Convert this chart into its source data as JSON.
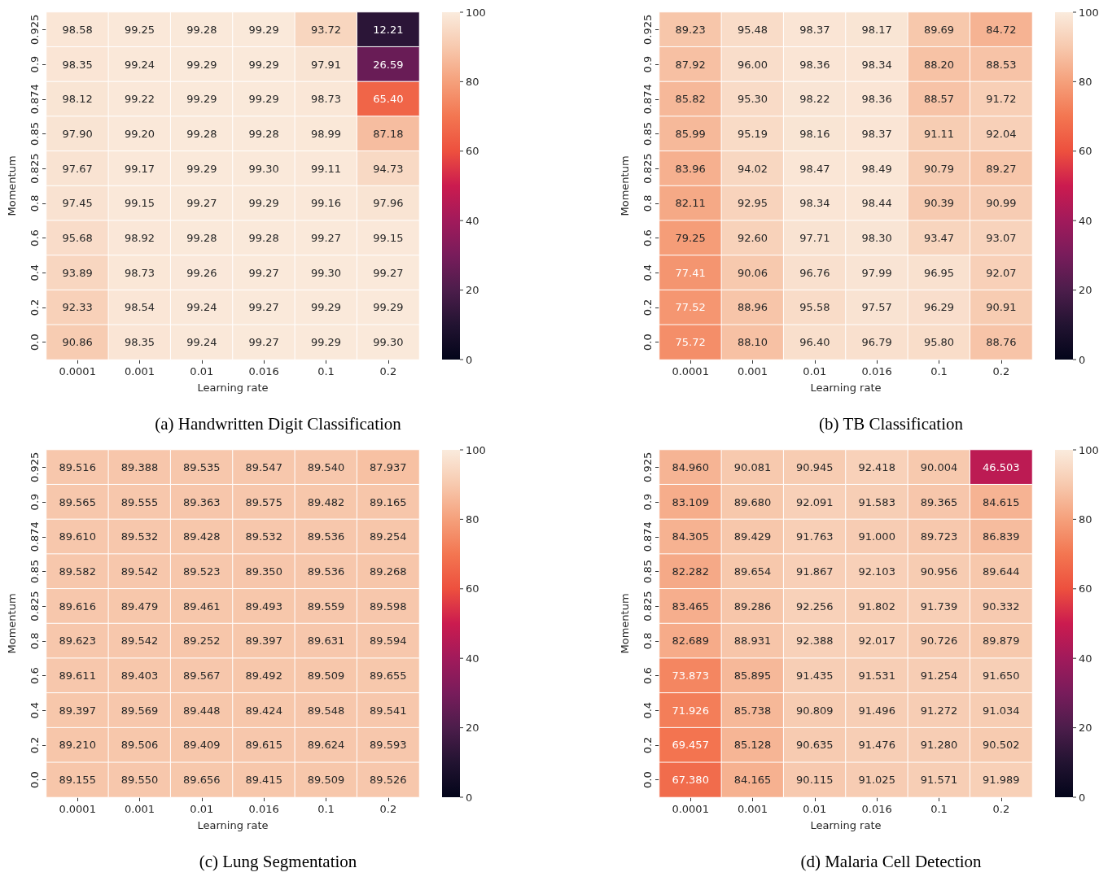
{
  "chart_data": [
    {
      "type": "heatmap",
      "title": "(a) Handwritten Digit Classification",
      "xlabel": "Learning rate",
      "ylabel": "Momentum",
      "categories": [
        "0.0001",
        "0.001",
        "0.01",
        "0.016",
        "0.1",
        "0.2"
      ],
      "y_categories": [
        "0.925",
        "0.9",
        "0.874",
        "0.85",
        "0.825",
        "0.8",
        "0.6",
        "0.4",
        "0.2",
        "0.0"
      ],
      "clim": [
        0,
        100
      ],
      "cticks": [
        0,
        20,
        40,
        60,
        80,
        100
      ],
      "cells": [
        [
          98.58,
          99.25,
          99.28,
          99.29,
          93.72,
          12.21
        ],
        [
          98.35,
          99.24,
          99.29,
          99.29,
          97.91,
          26.59
        ],
        [
          98.12,
          99.22,
          99.29,
          99.29,
          98.73,
          65.4
        ],
        [
          97.9,
          99.2,
          99.28,
          99.28,
          98.99,
          87.18
        ],
        [
          97.67,
          99.17,
          99.29,
          99.3,
          99.11,
          94.73
        ],
        [
          97.45,
          99.15,
          99.27,
          99.29,
          99.16,
          97.96
        ],
        [
          95.68,
          98.92,
          99.28,
          99.28,
          99.27,
          99.15
        ],
        [
          93.89,
          98.73,
          99.26,
          99.27,
          99.3,
          99.27
        ],
        [
          92.33,
          98.54,
          99.24,
          99.27,
          99.29,
          99.29
        ],
        [
          90.86,
          98.35,
          99.24,
          99.27,
          99.29,
          99.3
        ]
      ],
      "cell_labels": [
        [
          "98.58",
          "99.25",
          "99.28",
          "99.29",
          "93.72",
          "12.21"
        ],
        [
          "98.35",
          "99.24",
          "99.29",
          "99.29",
          "97.91",
          "26.59"
        ],
        [
          "98.12",
          "99.22",
          "99.29",
          "99.29",
          "98.73",
          "65.40"
        ],
        [
          "97.90",
          "99.20",
          "99.28",
          "99.28",
          "98.99",
          "87.18"
        ],
        [
          "97.67",
          "99.17",
          "99.29",
          "99.30",
          "99.11",
          "94.73"
        ],
        [
          "97.45",
          "99.15",
          "99.27",
          "99.29",
          "99.16",
          "97.96"
        ],
        [
          "95.68",
          "98.92",
          "99.28",
          "99.28",
          "99.27",
          "99.15"
        ],
        [
          "93.89",
          "98.73",
          "99.26",
          "99.27",
          "99.30",
          "99.27"
        ],
        [
          "92.33",
          "98.54",
          "99.24",
          "99.27",
          "99.29",
          "99.29"
        ],
        [
          "90.86",
          "98.35",
          "99.24",
          "99.27",
          "99.29",
          "99.30"
        ]
      ]
    },
    {
      "type": "heatmap",
      "title": "(b) TB Classification",
      "xlabel": "Learning rate",
      "ylabel": "Momentum",
      "categories": [
        "0.0001",
        "0.001",
        "0.01",
        "0.016",
        "0.1",
        "0.2"
      ],
      "y_categories": [
        "0.925",
        "0.9",
        "0.874",
        "0.85",
        "0.825",
        "0.8",
        "0.6",
        "0.4",
        "0.2",
        "0.0"
      ],
      "clim": [
        0,
        100
      ],
      "cticks": [
        0,
        20,
        40,
        60,
        80,
        100
      ],
      "cells": [
        [
          89.23,
          95.48,
          98.37,
          98.17,
          89.69,
          84.72
        ],
        [
          87.92,
          96.0,
          98.36,
          98.34,
          88.2,
          88.53
        ],
        [
          85.82,
          95.3,
          98.22,
          98.36,
          88.57,
          91.72
        ],
        [
          85.99,
          95.19,
          98.16,
          98.37,
          91.11,
          92.04
        ],
        [
          83.96,
          94.02,
          98.47,
          98.49,
          90.79,
          89.27
        ],
        [
          82.11,
          92.95,
          98.34,
          98.44,
          90.39,
          90.99
        ],
        [
          79.25,
          92.6,
          97.71,
          98.3,
          93.47,
          93.07
        ],
        [
          77.41,
          90.06,
          96.76,
          97.99,
          96.95,
          92.07
        ],
        [
          77.52,
          88.96,
          95.58,
          97.57,
          96.29,
          90.91
        ],
        [
          75.72,
          88.1,
          96.4,
          96.79,
          95.8,
          88.76
        ]
      ],
      "cell_labels": [
        [
          "89.23",
          "95.48",
          "98.37",
          "98.17",
          "89.69",
          "84.72"
        ],
        [
          "87.92",
          "96.00",
          "98.36",
          "98.34",
          "88.20",
          "88.53"
        ],
        [
          "85.82",
          "95.30",
          "98.22",
          "98.36",
          "88.57",
          "91.72"
        ],
        [
          "85.99",
          "95.19",
          "98.16",
          "98.37",
          "91.11",
          "92.04"
        ],
        [
          "83.96",
          "94.02",
          "98.47",
          "98.49",
          "90.79",
          "89.27"
        ],
        [
          "82.11",
          "92.95",
          "98.34",
          "98.44",
          "90.39",
          "90.99"
        ],
        [
          "79.25",
          "92.60",
          "97.71",
          "98.30",
          "93.47",
          "93.07"
        ],
        [
          "77.41",
          "90.06",
          "96.76",
          "97.99",
          "96.95",
          "92.07"
        ],
        [
          "77.52",
          "88.96",
          "95.58",
          "97.57",
          "96.29",
          "90.91"
        ],
        [
          "75.72",
          "88.10",
          "96.40",
          "96.79",
          "95.80",
          "88.76"
        ]
      ]
    },
    {
      "type": "heatmap",
      "title": "(c) Lung Segmentation",
      "xlabel": "Learning rate",
      "ylabel": "Momentum",
      "categories": [
        "0.0001",
        "0.001",
        "0.01",
        "0.016",
        "0.1",
        "0.2"
      ],
      "y_categories": [
        "0.925",
        "0.9",
        "0.874",
        "0.85",
        "0.825",
        "0.8",
        "0.6",
        "0.4",
        "0.2",
        "0.0"
      ],
      "clim": [
        0,
        100
      ],
      "cticks": [
        0,
        20,
        40,
        60,
        80,
        100
      ],
      "cells": [
        [
          89.516,
          89.388,
          89.535,
          89.547,
          89.54,
          87.937
        ],
        [
          89.565,
          89.555,
          89.363,
          89.575,
          89.482,
          89.165
        ],
        [
          89.61,
          89.532,
          89.428,
          89.532,
          89.536,
          89.254
        ],
        [
          89.582,
          89.542,
          89.523,
          89.35,
          89.536,
          89.268
        ],
        [
          89.616,
          89.479,
          89.461,
          89.493,
          89.559,
          89.598
        ],
        [
          89.623,
          89.542,
          89.252,
          89.397,
          89.631,
          89.594
        ],
        [
          89.611,
          89.403,
          89.567,
          89.492,
          89.509,
          89.655
        ],
        [
          89.397,
          89.569,
          89.448,
          89.424,
          89.548,
          89.541
        ],
        [
          89.21,
          89.506,
          89.409,
          89.615,
          89.624,
          89.593
        ],
        [
          89.155,
          89.55,
          89.656,
          89.415,
          89.509,
          89.526
        ]
      ],
      "cell_labels": [
        [
          "89.516",
          "89.388",
          "89.535",
          "89.547",
          "89.540",
          "87.937"
        ],
        [
          "89.565",
          "89.555",
          "89.363",
          "89.575",
          "89.482",
          "89.165"
        ],
        [
          "89.610",
          "89.532",
          "89.428",
          "89.532",
          "89.536",
          "89.254"
        ],
        [
          "89.582",
          "89.542",
          "89.523",
          "89.350",
          "89.536",
          "89.268"
        ],
        [
          "89.616",
          "89.479",
          "89.461",
          "89.493",
          "89.559",
          "89.598"
        ],
        [
          "89.623",
          "89.542",
          "89.252",
          "89.397",
          "89.631",
          "89.594"
        ],
        [
          "89.611",
          "89.403",
          "89.567",
          "89.492",
          "89.509",
          "89.655"
        ],
        [
          "89.397",
          "89.569",
          "89.448",
          "89.424",
          "89.548",
          "89.541"
        ],
        [
          "89.210",
          "89.506",
          "89.409",
          "89.615",
          "89.624",
          "89.593"
        ],
        [
          "89.155",
          "89.550",
          "89.656",
          "89.415",
          "89.509",
          "89.526"
        ]
      ]
    },
    {
      "type": "heatmap",
      "title": "(d) Malaria Cell Detection",
      "xlabel": "Learning rate",
      "ylabel": "Momentum",
      "categories": [
        "0.0001",
        "0.001",
        "0.01",
        "0.016",
        "0.1",
        "0.2"
      ],
      "y_categories": [
        "0.925",
        "0.9",
        "0.874",
        "0.85",
        "0.825",
        "0.8",
        "0.6",
        "0.4",
        "0.2",
        "0.0"
      ],
      "clim": [
        0,
        100
      ],
      "cticks": [
        0,
        20,
        40,
        60,
        80,
        100
      ],
      "cells": [
        [
          84.96,
          90.081,
          90.945,
          92.418,
          90.004,
          46.503
        ],
        [
          83.109,
          89.68,
          92.091,
          91.583,
          89.365,
          84.615
        ],
        [
          84.305,
          89.429,
          91.763,
          91.0,
          89.723,
          86.839
        ],
        [
          82.282,
          89.654,
          91.867,
          92.103,
          90.956,
          89.644
        ],
        [
          83.465,
          89.286,
          92.256,
          91.802,
          91.739,
          90.332
        ],
        [
          82.689,
          88.931,
          92.388,
          92.017,
          90.726,
          89.879
        ],
        [
          73.873,
          85.895,
          91.435,
          91.531,
          91.254,
          91.65
        ],
        [
          71.926,
          85.738,
          90.809,
          91.496,
          91.272,
          91.034
        ],
        [
          69.457,
          85.128,
          90.635,
          91.476,
          91.28,
          90.502
        ],
        [
          67.38,
          84.165,
          90.115,
          91.025,
          91.571,
          91.989
        ]
      ],
      "cell_labels": [
        [
          "84.960",
          "90.081",
          "90.945",
          "92.418",
          "90.004",
          "46.503"
        ],
        [
          "83.109",
          "89.680",
          "92.091",
          "91.583",
          "89.365",
          "84.615"
        ],
        [
          "84.305",
          "89.429",
          "91.763",
          "91.000",
          "89.723",
          "86.839"
        ],
        [
          "82.282",
          "89.654",
          "91.867",
          "92.103",
          "90.956",
          "89.644"
        ],
        [
          "83.465",
          "89.286",
          "92.256",
          "91.802",
          "91.739",
          "90.332"
        ],
        [
          "82.689",
          "88.931",
          "92.388",
          "92.017",
          "90.726",
          "89.879"
        ],
        [
          "73.873",
          "85.895",
          "91.435",
          "91.531",
          "91.254",
          "91.650"
        ],
        [
          "71.926",
          "85.738",
          "90.809",
          "91.496",
          "91.272",
          "91.034"
        ],
        [
          "69.457",
          "85.128",
          "90.635",
          "91.476",
          "91.280",
          "90.502"
        ],
        [
          "67.380",
          "84.165",
          "90.115",
          "91.025",
          "91.571",
          "91.989"
        ]
      ]
    }
  ]
}
